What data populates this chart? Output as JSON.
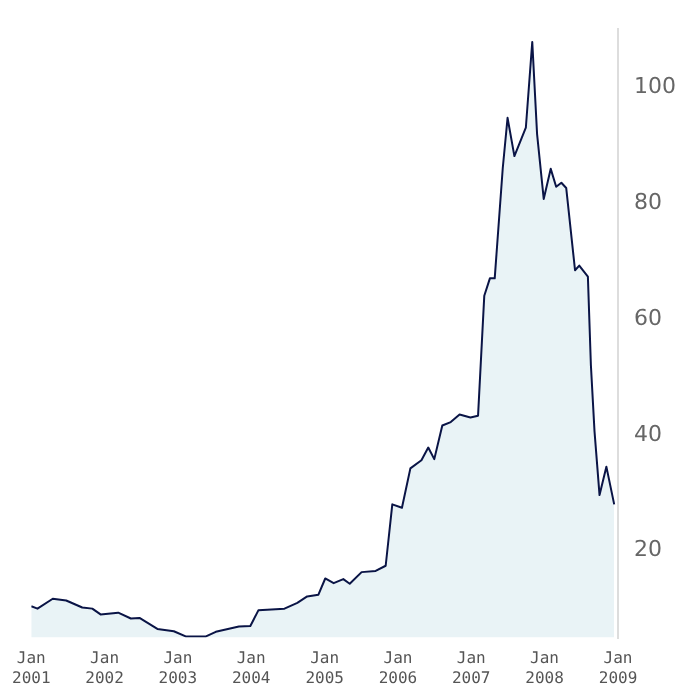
{
  "chart_data": {
    "type": "area",
    "x": [
      "2001-01-01",
      "2001-02-01",
      "2001-04-18",
      "2001-06-24",
      "2001-09-12",
      "2001-11-01",
      "2001-12-12",
      "2002-03-10",
      "2002-05-12",
      "2002-06-24",
      "2002-09-21",
      "2002-12-12",
      "2003-02-09",
      "2003-05-21",
      "2003-07-09",
      "2003-11-01",
      "2003-12-28",
      "2004-02-06",
      "2004-06-15",
      "2004-08-18",
      "2004-10-06",
      "2004-12-01",
      "2005-01-04",
      "2005-02-15",
      "2005-04-04",
      "2005-05-06",
      "2005-07-04",
      "2005-09-12",
      "2005-11-01",
      "2005-12-04",
      "2006-01-21",
      "2006-03-04",
      "2006-04-28",
      "2006-06-01",
      "2006-07-01",
      "2006-08-10",
      "2006-09-21",
      "2006-11-04",
      "2006-12-28",
      "2007-02-04",
      "2007-03-07",
      "2007-04-04",
      "2007-04-28",
      "2007-06-07",
      "2007-07-01",
      "2007-08-04",
      "2007-09-30",
      "2007-11-01",
      "2007-11-25",
      "2007-12-28",
      "2008-02-01",
      "2008-02-28",
      "2008-03-25",
      "2008-04-18",
      "2008-06-01",
      "2008-06-22",
      "2008-08-04",
      "2008-08-19",
      "2008-09-06",
      "2008-10-01",
      "2008-11-04",
      "2008-12-13"
    ],
    "series": [
      {
        "color": "#0a1446",
        "values": [
          10.4,
          10.0,
          11.7,
          11.4,
          10.2,
          10.0,
          9.0,
          9.3,
          8.3,
          8.4,
          6.5,
          6.1,
          5.2,
          5.2,
          6.0,
          6.9,
          7.0,
          9.7,
          10.0,
          11.0,
          12.1,
          12.4,
          15.2,
          14.4,
          15.1,
          14.3,
          16.3,
          16.5,
          17.4,
          28.0,
          27.4,
          34.2,
          35.6,
          37.8,
          35.8,
          41.6,
          42.2,
          43.5,
          43.0,
          43.3,
          64.0,
          67.0,
          67.0,
          86.0,
          94.7,
          88.1,
          93.0,
          107.8,
          91.9,
          80.7,
          85.9,
          82.8,
          83.5,
          82.6,
          68.4,
          69.2,
          67.3,
          52.0,
          40.6,
          29.6,
          34.5,
          28.0
        ]
      }
    ],
    "xlim": [
      "2001-01-01",
      "2009-01-01"
    ],
    "xticks": [
      {
        "value": "2001-01-01",
        "label": "Jan 2001"
      },
      {
        "value": "2002-01-01",
        "label": "Jan 2002"
      },
      {
        "value": "2003-01-01",
        "label": "Jan 2003"
      },
      {
        "value": "2004-01-01",
        "label": "Jan 2004"
      },
      {
        "value": "2005-01-01",
        "label": "Jan 2005"
      },
      {
        "value": "2006-01-01",
        "label": "Jan 2006"
      },
      {
        "value": "2007-01-01",
        "label": "Jan 2007"
      },
      {
        "value": "2008-01-01",
        "label": "Jan 2008"
      },
      {
        "value": "2009-01-01",
        "label": "Jan 2009"
      }
    ],
    "ylim": [
      5,
      110
    ],
    "yticks": [
      20,
      40,
      60,
      80,
      100
    ],
    "grid": false,
    "legend": false
  }
}
